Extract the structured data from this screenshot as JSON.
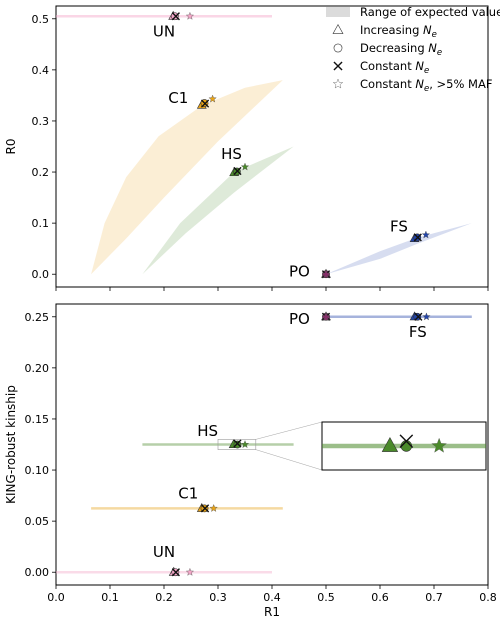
{
  "chart_data": [
    {
      "panel": "top",
      "type": "scatter",
      "ylabel": "R0",
      "xlabel": "",
      "xlim": [
        0.0,
        0.8
      ],
      "ylim": [
        -0.025,
        0.525
      ],
      "yticks": [
        0.0,
        0.1,
        0.2,
        0.3,
        0.4,
        0.5
      ],
      "ytick_labels": [
        "0.0",
        "0.1",
        "0.2",
        "0.3",
        "0.4",
        "0.5"
      ],
      "groups": [
        {
          "label": "UN",
          "color": "#f4a6c8",
          "points": {
            "increasing": [
              0.217,
              0.505
            ],
            "decreasing": [
              0.22,
              0.505
            ],
            "constant": [
              0.222,
              0.505
            ],
            "constant_maf": [
              0.248,
              0.505
            ]
          },
          "range": {
            "kind": "band",
            "r1": [
              0.0,
              0.4
            ],
            "r0": 0.505
          }
        },
        {
          "label": "C1",
          "color": "#e8a317",
          "points": {
            "increasing": [
              0.27,
              0.331
            ],
            "decreasing": [
              0.275,
              0.335
            ],
            "constant": [
              0.276,
              0.334
            ],
            "constant_maf": [
              0.29,
              0.343
            ]
          },
          "range": {
            "kind": "region",
            "upper": [
              [
                0.065,
                0.0
              ],
              [
                0.09,
                0.1
              ],
              [
                0.13,
                0.19
              ],
              [
                0.19,
                0.27
              ],
              [
                0.27,
                0.33
              ],
              [
                0.35,
                0.365
              ],
              [
                0.42,
                0.38
              ]
            ],
            "lower": [
              [
                0.42,
                0.38
              ],
              [
                0.3,
                0.26
              ],
              [
                0.2,
                0.15
              ],
              [
                0.13,
                0.07
              ],
              [
                0.065,
                0.0
              ]
            ]
          }
        },
        {
          "label": "HS",
          "color": "#4a8a2a",
          "points": {
            "increasing": [
              0.33,
              0.199
            ],
            "decreasing": [
              0.335,
              0.201
            ],
            "constant": [
              0.336,
              0.202
            ],
            "constant_maf": [
              0.35,
              0.21
            ]
          },
          "range": {
            "kind": "region",
            "upper": [
              [
                0.16,
                0.0
              ],
              [
                0.23,
                0.1
              ],
              [
                0.33,
                0.2
              ],
              [
                0.44,
                0.25
              ]
            ],
            "lower": [
              [
                0.44,
                0.25
              ],
              [
                0.33,
                0.16
              ],
              [
                0.24,
                0.08
              ],
              [
                0.16,
                0.0
              ]
            ]
          }
        },
        {
          "label": "FS",
          "color": "#2244aa",
          "points": {
            "increasing": [
              0.664,
              0.07
            ],
            "decreasing": [
              0.669,
              0.072
            ],
            "constant": [
              0.67,
              0.072
            ],
            "constant_maf": [
              0.685,
              0.077
            ]
          },
          "range": {
            "kind": "region",
            "upper": [
              [
                0.5,
                0.0
              ],
              [
                0.6,
                0.045
              ],
              [
                0.67,
                0.072
              ],
              [
                0.77,
                0.1
              ]
            ],
            "lower": [
              [
                0.77,
                0.1
              ],
              [
                0.67,
                0.06
              ],
              [
                0.6,
                0.03
              ],
              [
                0.5,
                0.0
              ]
            ]
          }
        },
        {
          "label": "PO",
          "color": "#8a2a6a",
          "points": {
            "increasing": [
              0.5,
              0.0
            ],
            "decreasing": [
              0.5,
              0.0
            ],
            "constant": [
              0.5,
              0.0
            ],
            "constant_maf": [
              0.5,
              0.0
            ]
          },
          "range": null
        }
      ]
    },
    {
      "panel": "bottom",
      "type": "scatter",
      "ylabel": "KING-robust kinship",
      "xlabel": "R1",
      "xlim": [
        0.0,
        0.8
      ],
      "ylim": [
        -0.0125,
        0.2625
      ],
      "yticks": [
        0.0,
        0.05,
        0.1,
        0.15,
        0.2,
        0.25
      ],
      "ytick_labels": [
        "0.00",
        "0.05",
        "0.10",
        "0.15",
        "0.20",
        "0.25"
      ],
      "xticks": [
        0.0,
        0.1,
        0.2,
        0.3,
        0.4,
        0.5,
        0.6,
        0.7,
        0.8
      ],
      "xtick_labels": [
        "0.0",
        "0.1",
        "0.2",
        "0.3",
        "0.4",
        "0.5",
        "0.6",
        "0.7",
        "0.8"
      ],
      "groups": [
        {
          "label": "UN",
          "color": "#f4a6c8",
          "points": {
            "increasing": [
              0.218,
              0.0
            ],
            "decreasing": [
              0.221,
              0.0
            ],
            "constant": [
              0.222,
              0.0
            ],
            "constant_maf": [
              0.248,
              0.0
            ]
          },
          "range": {
            "kind": "band",
            "r1": [
              0.0,
              0.4
            ],
            "kinship": 0.0
          }
        },
        {
          "label": "C1",
          "color": "#e8a317",
          "points": {
            "increasing": [
              0.27,
              0.0625
            ],
            "decreasing": [
              0.275,
              0.0625
            ],
            "constant": [
              0.276,
              0.0625
            ],
            "constant_maf": [
              0.292,
              0.0625
            ]
          },
          "range": {
            "kind": "band",
            "r1": [
              0.065,
              0.42
            ],
            "kinship": 0.0625
          }
        },
        {
          "label": "HS",
          "color": "#4a8a2a",
          "points": {
            "increasing": [
              0.329,
              0.125
            ],
            "decreasing": [
              0.336,
              0.125
            ],
            "constant": [
              0.336,
              0.126
            ],
            "constant_maf": [
              0.35,
              0.125
            ]
          },
          "range": {
            "kind": "band",
            "r1": [
              0.16,
              0.44
            ],
            "kinship": 0.125
          }
        },
        {
          "label": "FS",
          "color": "#2244aa",
          "points": {
            "increasing": [
              0.664,
              0.25
            ],
            "decreasing": [
              0.669,
              0.25
            ],
            "constant": [
              0.671,
              0.25
            ],
            "constant_maf": [
              0.686,
              0.25
            ]
          },
          "range": {
            "kind": "band",
            "r1": [
              0.5,
              0.77
            ],
            "kinship": 0.25
          }
        },
        {
          "label": "PO",
          "color": "#8a2a6a",
          "points": {
            "increasing": [
              0.5,
              0.25
            ],
            "decreasing": [
              0.5,
              0.25
            ],
            "constant": [
              0.5,
              0.25
            ],
            "constant_maf": [
              0.5,
              0.25
            ]
          },
          "range": null
        }
      ],
      "inset": {
        "zooms": "HS",
        "xlim": [
          0.3,
          0.37
        ],
        "ylim": [
          0.12,
          0.13
        ]
      }
    }
  ],
  "legend": {
    "position": "top-right",
    "entries": [
      {
        "marker": "range",
        "label": "Range of expected values"
      },
      {
        "marker": "triangle",
        "label": "Increasing ",
        "sub": "N",
        "subscript": "e"
      },
      {
        "marker": "circle",
        "label": "Decreasing ",
        "sub": "N",
        "subscript": "e"
      },
      {
        "marker": "cross",
        "label": "Constant ",
        "sub": "N",
        "subscript": "e"
      },
      {
        "marker": "star",
        "label": "Constant ",
        "sub": "N",
        "subscript": "e",
        "suffix": ", >5% MAF"
      }
    ]
  }
}
